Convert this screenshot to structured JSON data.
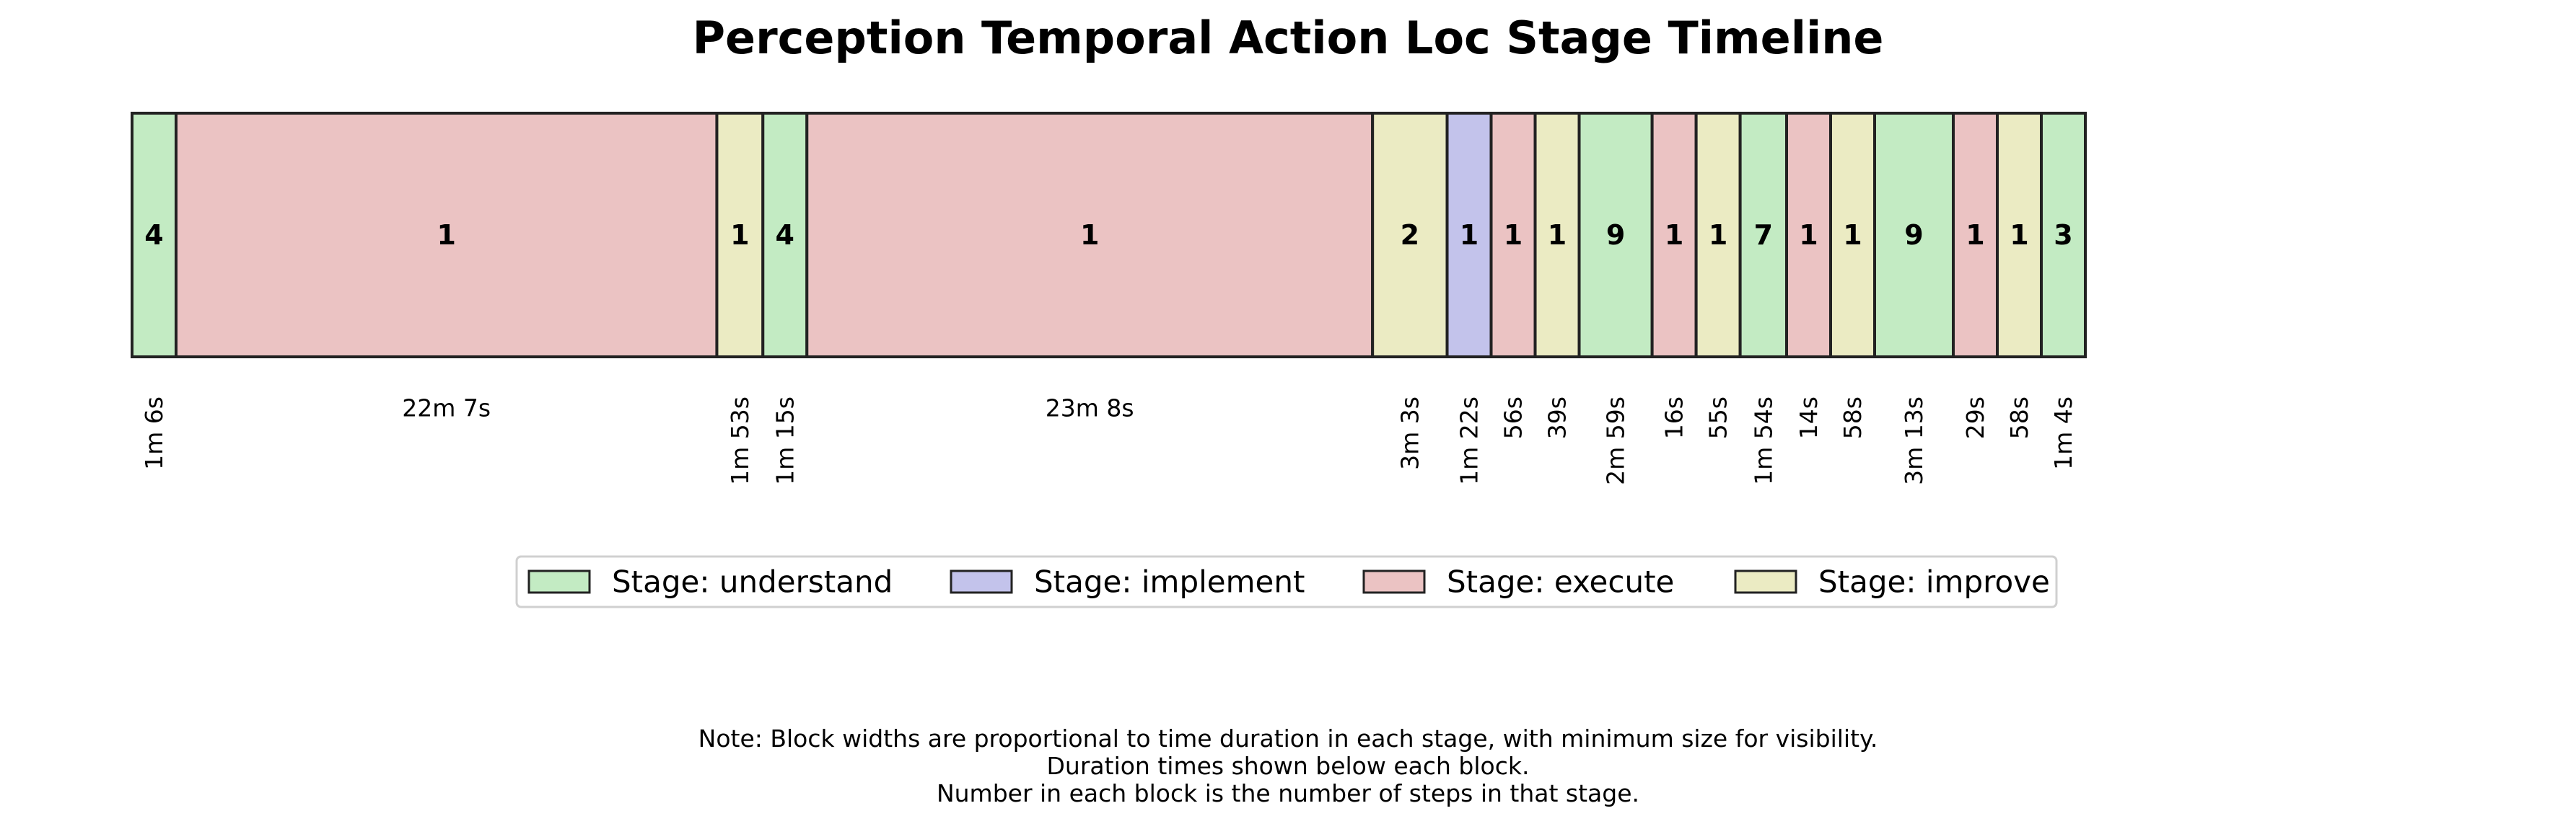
{
  "chart_data": {
    "type": "timeline",
    "title": "Perception Temporal Action Loc Stage Timeline",
    "stages": [
      {
        "key": "understand",
        "label": "Stage: understand",
        "color": "#c3ebc3"
      },
      {
        "key": "implement",
        "label": "Stage: implement",
        "color": "#c3c3eb"
      },
      {
        "key": "execute",
        "label": "Stage: execute",
        "color": "#ebc3c3"
      },
      {
        "key": "improve",
        "label": "Stage: improve",
        "color": "#ebebc3"
      }
    ],
    "blocks": [
      {
        "stage": "understand",
        "steps": "4",
        "duration": "1m 6s",
        "seconds": 66
      },
      {
        "stage": "execute",
        "steps": "1",
        "duration": "22m 7s",
        "seconds": 1327
      },
      {
        "stage": "improve",
        "steps": "1",
        "duration": "1m 53s",
        "seconds": 113
      },
      {
        "stage": "understand",
        "steps": "4",
        "duration": "1m 15s",
        "seconds": 75
      },
      {
        "stage": "execute",
        "steps": "1",
        "duration": "23m 8s",
        "seconds": 1388
      },
      {
        "stage": "improve",
        "steps": "2",
        "duration": "3m 3s",
        "seconds": 183
      },
      {
        "stage": "implement",
        "steps": "1",
        "duration": "1m 22s",
        "seconds": 82
      },
      {
        "stage": "execute",
        "steps": "1",
        "duration": "56s",
        "seconds": 56
      },
      {
        "stage": "improve",
        "steps": "1",
        "duration": "39s",
        "seconds": 39
      },
      {
        "stage": "understand",
        "steps": "9",
        "duration": "2m 59s",
        "seconds": 179
      },
      {
        "stage": "execute",
        "steps": "1",
        "duration": "16s",
        "seconds": 16
      },
      {
        "stage": "improve",
        "steps": "1",
        "duration": "55s",
        "seconds": 55
      },
      {
        "stage": "understand",
        "steps": "7",
        "duration": "1m 54s",
        "seconds": 114
      },
      {
        "stage": "execute",
        "steps": "1",
        "duration": "14s",
        "seconds": 14
      },
      {
        "stage": "improve",
        "steps": "1",
        "duration": "58s",
        "seconds": 58
      },
      {
        "stage": "understand",
        "steps": "9",
        "duration": "3m 13s",
        "seconds": 193
      },
      {
        "stage": "execute",
        "steps": "1",
        "duration": "29s",
        "seconds": 29
      },
      {
        "stage": "improve",
        "steps": "1",
        "duration": "58s",
        "seconds": 58
      },
      {
        "stage": "understand",
        "steps": "3",
        "duration": "1m 4s",
        "seconds": 64
      }
    ],
    "legend_position": "below",
    "notes": [
      "Note: Block widths are proportional to time duration in each stage, with minimum size for visibility.",
      "Duration times shown below each block.",
      "Number in each block is the number of steps in that stage."
    ]
  }
}
